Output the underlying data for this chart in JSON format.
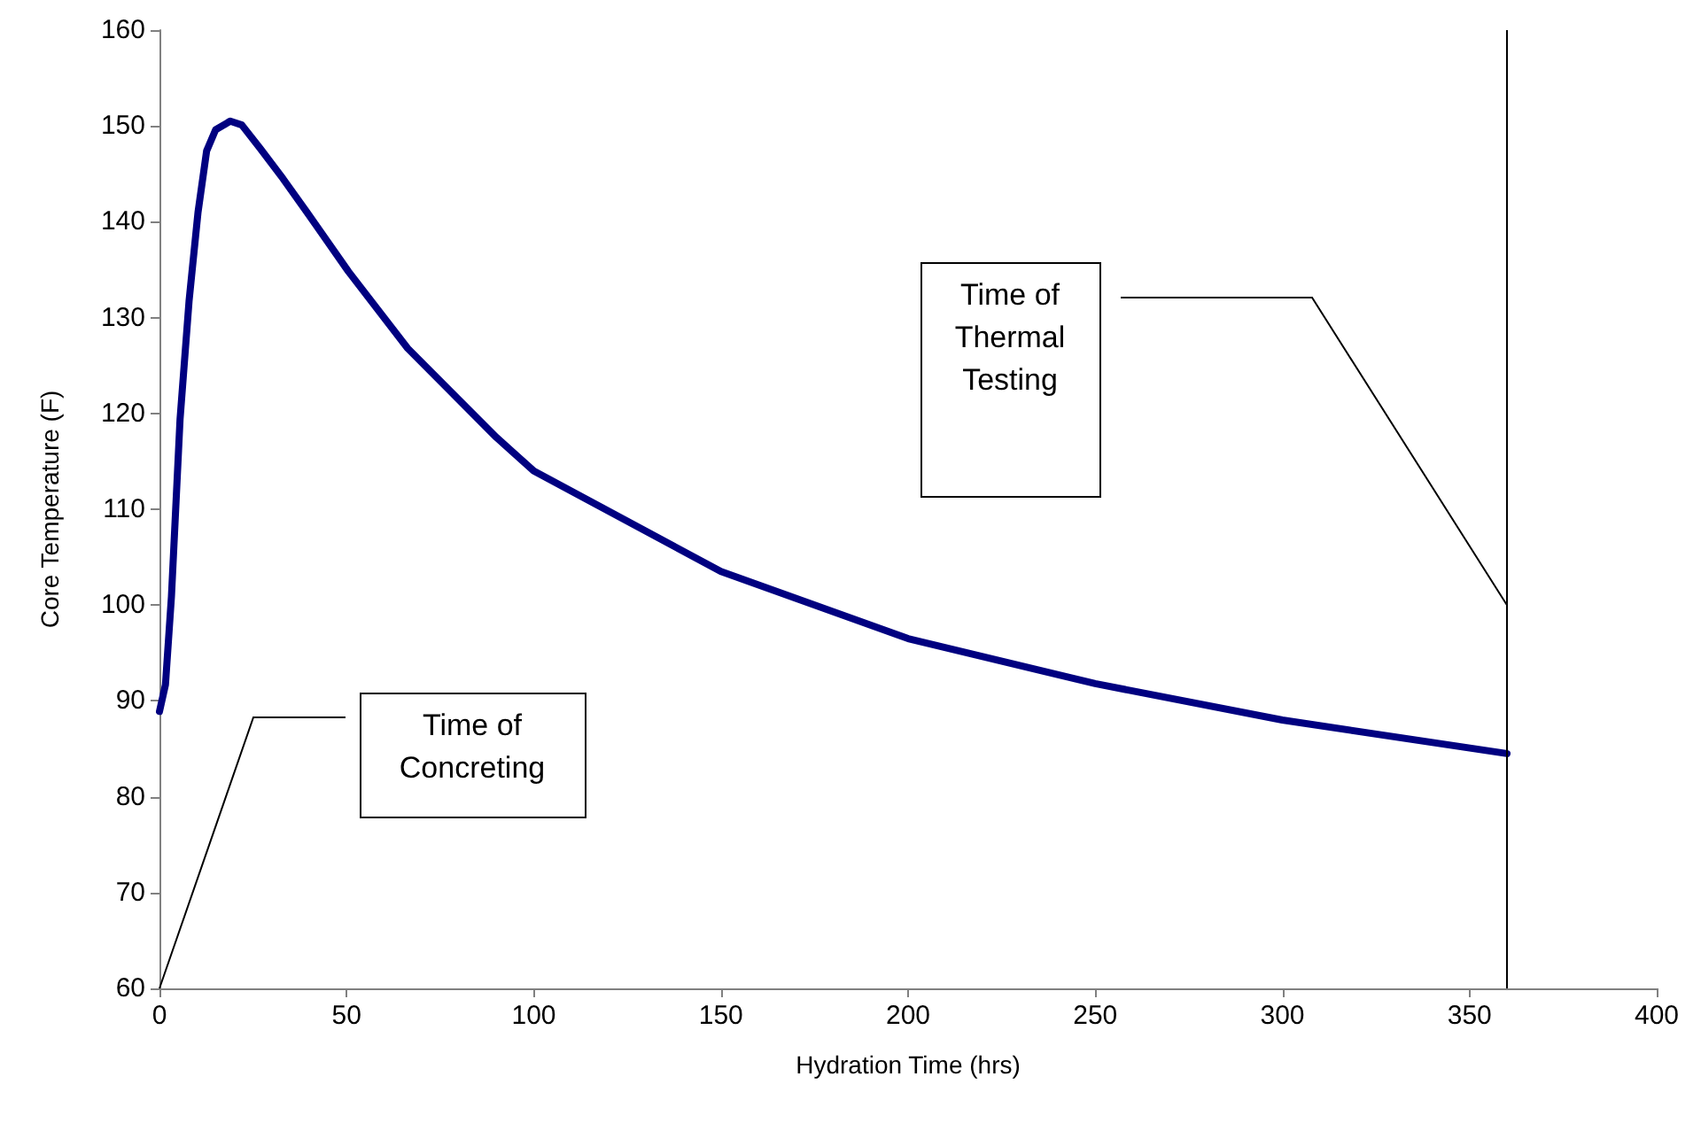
{
  "chart_data": {
    "type": "line",
    "xlabel": "Hydration Time (hrs)",
    "ylabel": "Core Temperature (F)",
    "x": [
      0,
      1.6,
      3.2,
      5.5,
      7.9,
      10.3,
      12.6,
      15,
      18.9,
      22,
      26.8,
      33,
      39.4,
      50.5,
      66.3,
      90,
      100,
      150,
      200,
      250,
      300,
      360
    ],
    "series": [
      {
        "color": "#000080",
        "values": [
          88.9,
          91.7,
          100.9,
          119.4,
          131.7,
          141,
          147.4,
          149.6,
          150.5,
          150.1,
          147.7,
          144.5,
          141,
          134.8,
          126.8,
          117.5,
          114,
          103.5,
          96.5,
          91.8,
          88,
          84.5
        ]
      }
    ],
    "xlim": [
      0,
      400
    ],
    "xticks": [
      0,
      50,
      100,
      150,
      200,
      250,
      300,
      350,
      400
    ],
    "ylim": [
      60,
      160
    ],
    "yticks": [
      60,
      70,
      80,
      90,
      100,
      110,
      120,
      130,
      140,
      150,
      160
    ],
    "grid": false,
    "marker": "none",
    "line_style": "solid",
    "ref_lines": [
      {
        "axis": "x",
        "value": 360,
        "color": "#000000"
      }
    ],
    "annotations": [
      "Time of\nConcreting",
      "Time of\nThermal\nTesting"
    ]
  }
}
